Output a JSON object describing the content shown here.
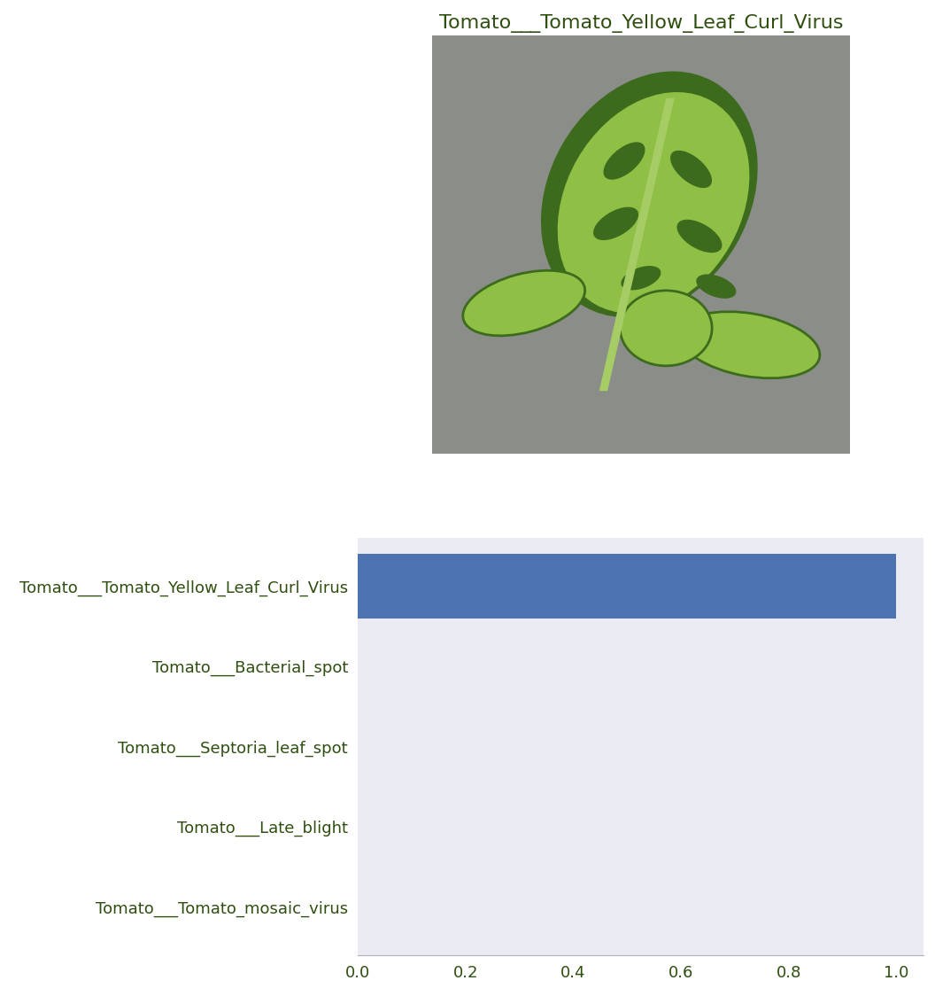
{
  "chart_data": [
    {
      "type": "image",
      "title": "Tomato___Tomato_Yellow_Leaf_Curl_Virus"
    },
    {
      "type": "bar",
      "orientation": "horizontal",
      "categories": [
        "Tomato___Tomato_Yellow_Leaf_Curl_Virus",
        "Tomato___Bacterial_spot",
        "Tomato___Septoria_leaf_spot",
        "Tomato___Late_blight",
        "Tomato___Tomato_mosaic_virus"
      ],
      "values": [
        1.0,
        0.0,
        0.0,
        0.0,
        0.0
      ],
      "color": "#4c72b0",
      "xlim": [
        0,
        1.05
      ],
      "xticks": [
        {
          "value": 0,
          "label": "0.0"
        },
        {
          "value": 0.2,
          "label": "0.2"
        },
        {
          "value": 0.4,
          "label": "0.4"
        },
        {
          "value": 0.6,
          "label": "0.6"
        },
        {
          "value": 0.8,
          "label": "0.8"
        },
        {
          "value": 1,
          "label": "1.0"
        }
      ],
      "grid": false
    }
  ]
}
